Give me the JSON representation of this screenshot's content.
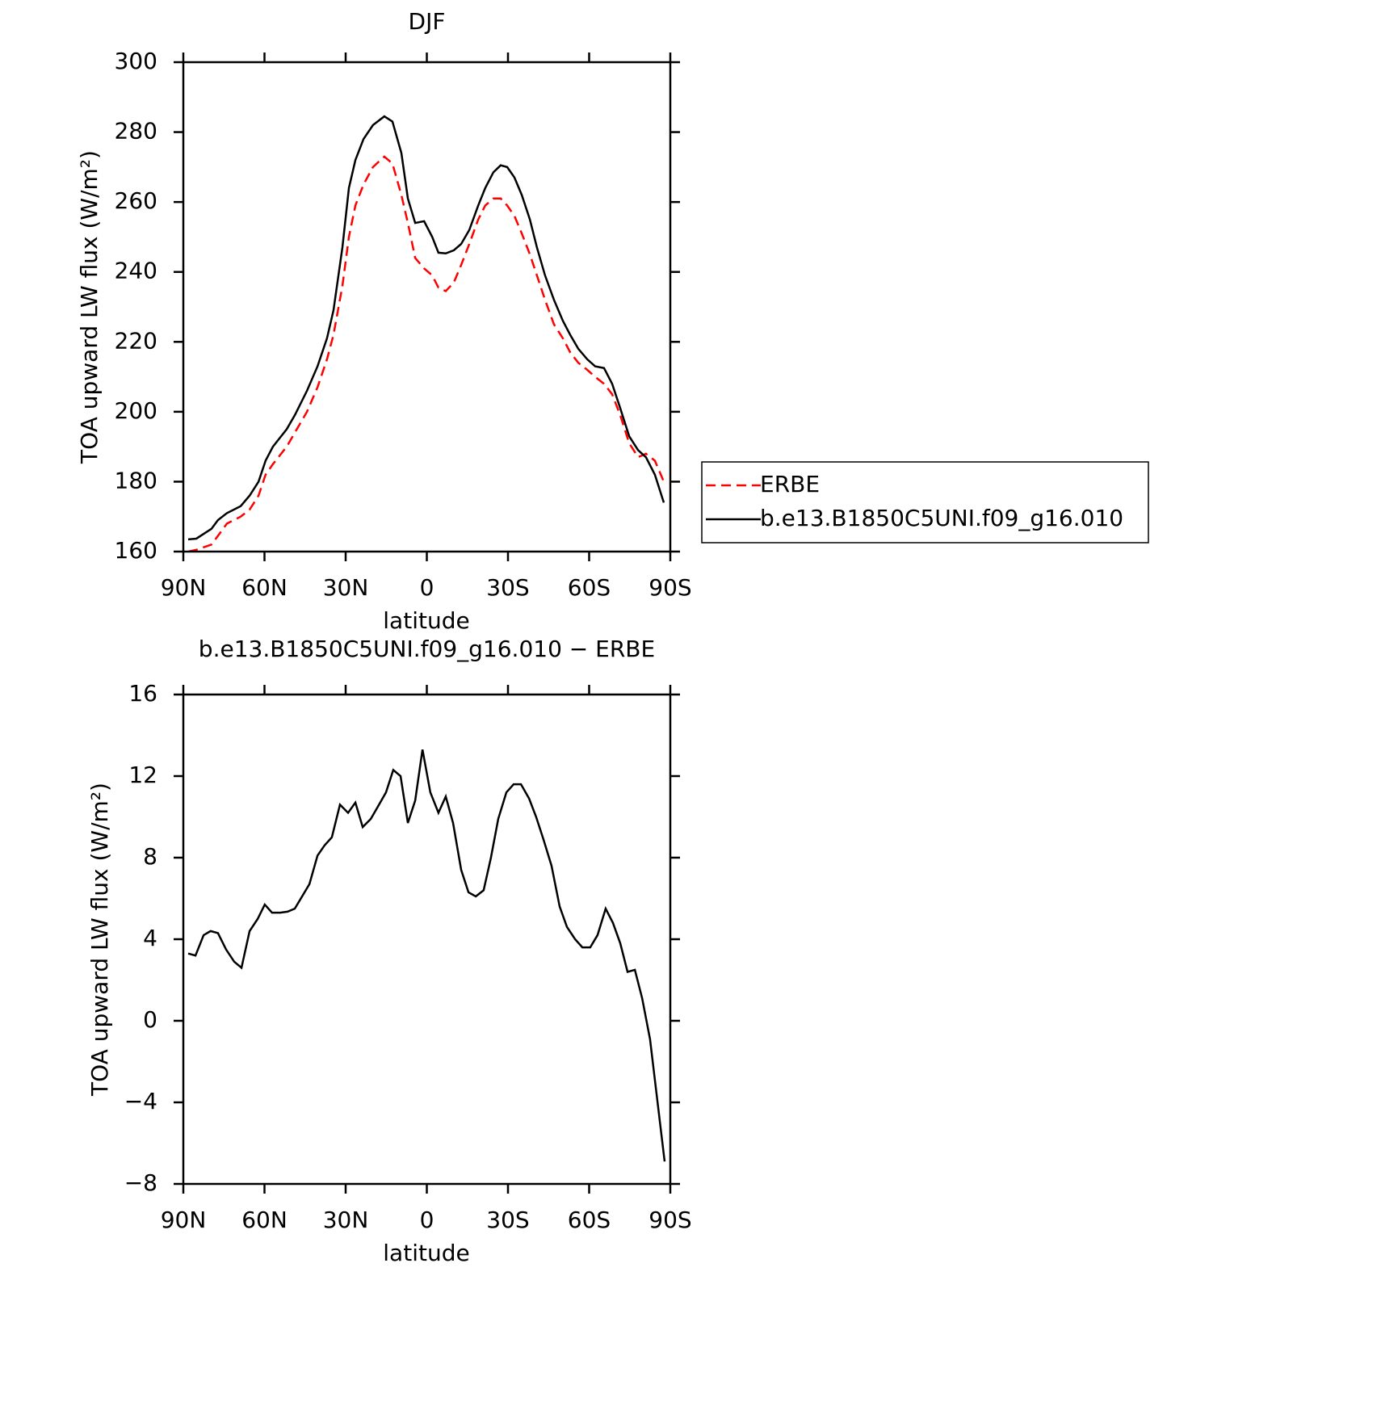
{
  "chart_data": [
    {
      "type": "line",
      "title": "DJF",
      "xlabel": "latitude",
      "ylabel": "TOA upward LW flux (W/m²)",
      "xlim": [
        90,
        -90
      ],
      "xticks": [
        {
          "value": 90,
          "label": "90N"
        },
        {
          "value": 60,
          "label": "60N"
        },
        {
          "value": 30,
          "label": "30N"
        },
        0,
        {
          "value": -30,
          "label": "30S"
        },
        {
          "value": -60,
          "label": "60S"
        },
        {
          "value": -90,
          "label": "90S"
        }
      ],
      "ylim": [
        160,
        300
      ],
      "yticks": [
        160,
        180,
        200,
        220,
        240,
        260,
        280,
        300
      ],
      "legend": "outside right",
      "x": [
        88.2,
        85.2,
        79.6,
        77.2,
        73.9,
        68.8,
        65.5,
        62.2,
        59.6,
        56.9,
        51.8,
        48.8,
        44.3,
        40.4,
        36.9,
        34.5,
        31.2,
        28.8,
        26.4,
        23.4,
        19.9,
        15.7,
        12.7,
        9.4,
        7.0,
        4.3,
        1.0,
        -2.0,
        -4.3,
        -7.0,
        -10.0,
        -12.7,
        -15.7,
        -19.0,
        -21.6,
        -24.6,
        -27.3,
        -29.7,
        -32.4,
        -35.1,
        -38.1,
        -40.7,
        -43.7,
        -47.0,
        -50.3,
        -53.0,
        -56.0,
        -59.3,
        -62.2,
        -65.5,
        -68.5,
        -71.5,
        -74.8,
        -78.1,
        -81.0,
        -84.3,
        -87.6
      ],
      "series": [
        {
          "name": "ERBE",
          "color": "#ff0000",
          "dash": true,
          "values": [
            160,
            160.5,
            162,
            164.5,
            168,
            170,
            172,
            176,
            182,
            185,
            190,
            194,
            200,
            207,
            215,
            222,
            236,
            250,
            259,
            265,
            270,
            273,
            271,
            262,
            254,
            244,
            241,
            239,
            235.5,
            234.5,
            237,
            242,
            248,
            255,
            259,
            261,
            261,
            259,
            256,
            251,
            245,
            239,
            232,
            225,
            221,
            217,
            214,
            212,
            210,
            208,
            205,
            199,
            191,
            187,
            188,
            186,
            180
          ]
        },
        {
          "name": "b.e13.B1850C5UNI.f09_g16.010",
          "color": "#000000",
          "dash": false,
          "values": [
            163.5,
            163.7,
            166.5,
            169,
            171,
            173,
            176,
            180,
            186,
            190,
            195,
            199,
            206,
            213,
            221,
            229,
            247,
            264,
            272,
            278,
            282,
            284.5,
            283,
            274,
            261,
            254,
            254.5,
            250,
            245.5,
            245.3,
            246.2,
            248,
            252,
            259,
            264,
            268.5,
            270.5,
            270,
            267,
            262,
            255,
            247,
            239,
            232,
            226,
            222,
            218,
            215,
            213,
            212.5,
            208,
            201,
            193,
            189,
            187,
            182,
            174
          ]
        }
      ]
    },
    {
      "type": "line",
      "title": "b.e13.B1850C5UNI.f09_g16.010 − ERBE",
      "xlabel": "latitude",
      "ylabel": "TOA upward LW flux (W/m²)",
      "xlim": [
        90,
        -90
      ],
      "xticks": [
        {
          "value": 90,
          "label": "90N"
        },
        {
          "value": 60,
          "label": "60N"
        },
        {
          "value": 30,
          "label": "30N"
        },
        0,
        {
          "value": -30,
          "label": "30S"
        },
        {
          "value": -60,
          "label": "60S"
        },
        {
          "value": -90,
          "label": "90S"
        }
      ],
      "ylim": [
        -8,
        16
      ],
      "yticks": [
        {
          "value": -8,
          "label": "−8"
        },
        {
          "value": -4,
          "label": "−4"
        },
        0,
        4,
        8,
        12,
        16
      ],
      "x": [
        88.2,
        85.5,
        82.5,
        79.9,
        77.2,
        74.2,
        71.2,
        68.5,
        65.5,
        62.5,
        59.9,
        57.2,
        54.2,
        51.5,
        48.8,
        46.1,
        43.4,
        40.4,
        37.8,
        35.1,
        32.1,
        29.1,
        26.4,
        23.7,
        20.7,
        18.1,
        15.1,
        12.4,
        9.7,
        7.0,
        4.3,
        1.6,
        -1.3,
        -4.3,
        -7.0,
        -9.7,
        -12.7,
        -15.4,
        -18.1,
        -21.0,
        -23.7,
        -26.4,
        -29.4,
        -32.1,
        -34.8,
        -37.8,
        -40.4,
        -43.1,
        -46.1,
        -49.1,
        -51.8,
        -54.8,
        -57.5,
        -60.4,
        -63.1,
        -66.1,
        -68.8,
        -71.5,
        -74.2,
        -76.9,
        -79.6,
        -82.5,
        -85.2,
        -87.9
      ],
      "series": [
        {
          "color": "#000000",
          "dash": false,
          "values": [
            3.3,
            3.2,
            4.2,
            4.4,
            4.3,
            3.5,
            2.9,
            2.6,
            4.4,
            5.0,
            5.7,
            5.3,
            5.3,
            5.35,
            5.5,
            6.1,
            6.7,
            8.1,
            8.6,
            9.0,
            10.6,
            10.2,
            10.7,
            9.5,
            9.9,
            10.5,
            11.2,
            12.3,
            12.0,
            9.7,
            10.8,
            13.3,
            11.2,
            10.2,
            11.0,
            9.7,
            7.4,
            6.3,
            6.1,
            6.4,
            8.0,
            9.9,
            11.2,
            11.6,
            11.6,
            10.9,
            10.0,
            8.9,
            7.6,
            5.6,
            4.6,
            4.0,
            3.6,
            3.6,
            4.2,
            5.5,
            4.8,
            3.8,
            2.4,
            2.5,
            1.1,
            -0.9,
            -3.9,
            -6.9
          ]
        }
      ]
    }
  ]
}
